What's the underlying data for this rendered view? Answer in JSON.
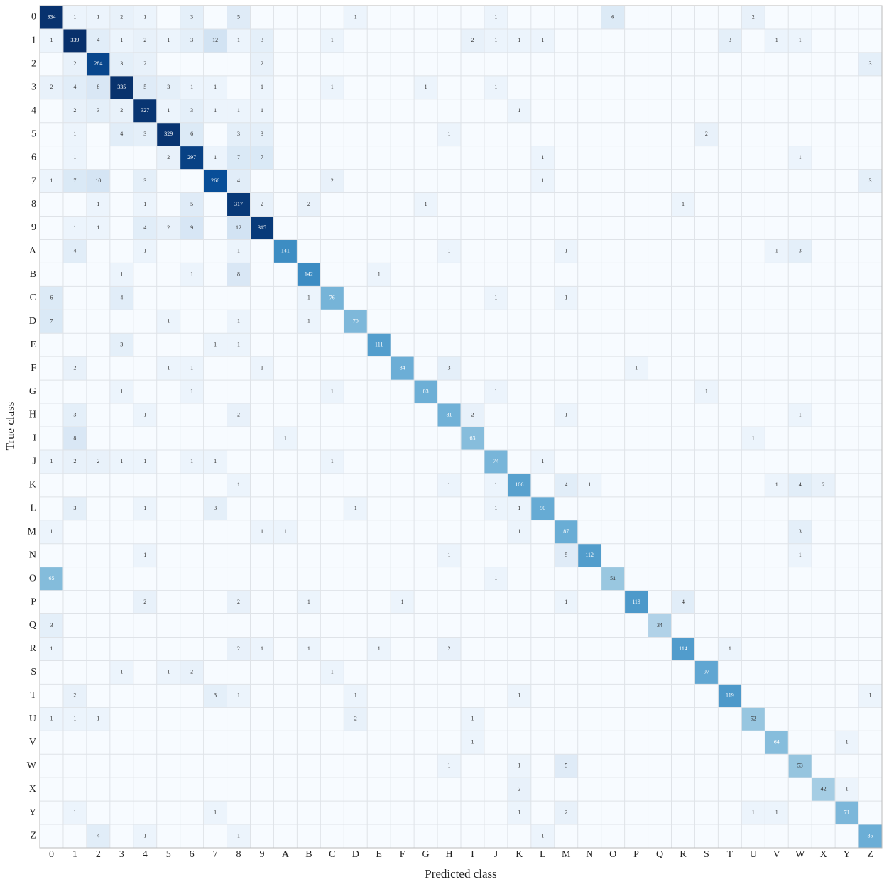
{
  "chart_data": {
    "type": "heatmap",
    "x_label": "Predicted class",
    "y_label": "True class",
    "x_categories": [
      "0",
      "1",
      "2",
      "3",
      "4",
      "5",
      "6",
      "7",
      "8",
      "9",
      "A",
      "B",
      "C",
      "D",
      "E",
      "F",
      "G",
      "H",
      "I",
      "J",
      "K",
      "L",
      "M",
      "N",
      "O",
      "P",
      "Q",
      "R",
      "S",
      "T",
      "U",
      "V",
      "W",
      "X",
      "Y",
      "Z"
    ],
    "y_categories": [
      "0",
      "1",
      "2",
      "3",
      "4",
      "5",
      "6",
      "7",
      "8",
      "9",
      "A",
      "B",
      "C",
      "D",
      "E",
      "F",
      "G",
      "H",
      "I",
      "J",
      "K",
      "L",
      "M",
      "N",
      "O",
      "P",
      "Q",
      "R",
      "S",
      "T",
      "U",
      "V",
      "W",
      "X",
      "Y",
      "Z"
    ],
    "colormap": "Blues",
    "color_scale": "sqrt",
    "grid": true,
    "values": [
      [
        334,
        1,
        1,
        2,
        1,
        null,
        3,
        null,
        5,
        null,
        null,
        null,
        null,
        1,
        null,
        null,
        null,
        null,
        null,
        1,
        null,
        null,
        null,
        null,
        6,
        null,
        null,
        null,
        null,
        null,
        2,
        null,
        null,
        null,
        null,
        null
      ],
      [
        1,
        339,
        4,
        1,
        2,
        1,
        3,
        12,
        1,
        3,
        null,
        null,
        1,
        null,
        null,
        null,
        null,
        null,
        2,
        1,
        1,
        1,
        null,
        null,
        null,
        null,
        null,
        null,
        null,
        3,
        null,
        1,
        1,
        null,
        null,
        null
      ],
      [
        null,
        2,
        284,
        3,
        2,
        null,
        null,
        null,
        null,
        2,
        null,
        null,
        null,
        null,
        null,
        null,
        null,
        null,
        null,
        null,
        null,
        null,
        null,
        null,
        null,
        null,
        null,
        null,
        null,
        null,
        null,
        null,
        null,
        null,
        null,
        3
      ],
      [
        2,
        4,
        8,
        335,
        5,
        3,
        1,
        1,
        null,
        1,
        null,
        null,
        1,
        null,
        null,
        null,
        1,
        null,
        null,
        1,
        null,
        null,
        null,
        null,
        null,
        null,
        null,
        null,
        null,
        null,
        null,
        null,
        null,
        null,
        null,
        null
      ],
      [
        null,
        2,
        3,
        2,
        327,
        1,
        3,
        1,
        1,
        1,
        null,
        null,
        null,
        null,
        null,
        null,
        null,
        null,
        null,
        null,
        1,
        null,
        null,
        null,
        null,
        null,
        null,
        null,
        null,
        null,
        null,
        null,
        null,
        null,
        null,
        null
      ],
      [
        null,
        1,
        null,
        4,
        3,
        329,
        6,
        null,
        3,
        3,
        null,
        null,
        null,
        null,
        null,
        null,
        null,
        1,
        null,
        null,
        null,
        null,
        null,
        null,
        null,
        null,
        null,
        null,
        2,
        null,
        null,
        null,
        null,
        null,
        null,
        null
      ],
      [
        null,
        1,
        null,
        null,
        null,
        2,
        297,
        1,
        7,
        7,
        null,
        null,
        null,
        null,
        null,
        null,
        null,
        null,
        null,
        null,
        null,
        1,
        null,
        null,
        null,
        null,
        null,
        null,
        null,
        null,
        null,
        null,
        1,
        null,
        null,
        null
      ],
      [
        1,
        7,
        10,
        null,
        3,
        null,
        null,
        266,
        4,
        null,
        null,
        null,
        2,
        null,
        null,
        null,
        null,
        null,
        null,
        null,
        null,
        1,
        null,
        null,
        null,
        null,
        null,
        null,
        null,
        null,
        null,
        null,
        null,
        null,
        null,
        3
      ],
      [
        null,
        null,
        1,
        null,
        1,
        null,
        5,
        null,
        317,
        2,
        null,
        2,
        null,
        null,
        null,
        null,
        1,
        null,
        null,
        null,
        null,
        null,
        null,
        null,
        null,
        null,
        null,
        1,
        null,
        null,
        null,
        null,
        null,
        null,
        null,
        null
      ],
      [
        null,
        1,
        1,
        null,
        4,
        2,
        9,
        null,
        12,
        315,
        null,
        null,
        null,
        null,
        null,
        null,
        null,
        null,
        null,
        null,
        null,
        null,
        null,
        null,
        null,
        null,
        null,
        null,
        null,
        null,
        null,
        null,
        null,
        null,
        null,
        null
      ],
      [
        null,
        4,
        null,
        null,
        1,
        null,
        null,
        null,
        1,
        null,
        141,
        null,
        null,
        null,
        null,
        null,
        null,
        1,
        null,
        null,
        null,
        null,
        1,
        null,
        null,
        null,
        null,
        null,
        null,
        null,
        null,
        1,
        3,
        null,
        null,
        null
      ],
      [
        null,
        null,
        null,
        1,
        null,
        null,
        1,
        null,
        8,
        null,
        null,
        142,
        null,
        null,
        1,
        null,
        null,
        null,
        null,
        null,
        null,
        null,
        null,
        null,
        null,
        null,
        null,
        null,
        null,
        null,
        null,
        null,
        null,
        null,
        null,
        null
      ],
      [
        6,
        null,
        null,
        4,
        null,
        null,
        null,
        null,
        null,
        null,
        null,
        1,
        76,
        null,
        null,
        null,
        null,
        null,
        null,
        1,
        null,
        null,
        1,
        null,
        null,
        null,
        null,
        null,
        null,
        null,
        null,
        null,
        null,
        null,
        null,
        null
      ],
      [
        7,
        null,
        null,
        null,
        null,
        1,
        null,
        null,
        1,
        null,
        null,
        1,
        null,
        70,
        null,
        null,
        null,
        null,
        null,
        null,
        null,
        null,
        null,
        null,
        null,
        null,
        null,
        null,
        null,
        null,
        null,
        null,
        null,
        null,
        null,
        null
      ],
      [
        null,
        null,
        null,
        3,
        null,
        null,
        null,
        1,
        1,
        null,
        null,
        null,
        null,
        null,
        111,
        null,
        null,
        null,
        null,
        null,
        null,
        null,
        null,
        null,
        null,
        null,
        null,
        null,
        null,
        null,
        null,
        null,
        null,
        null,
        null,
        null
      ],
      [
        null,
        2,
        null,
        null,
        null,
        1,
        1,
        null,
        null,
        1,
        null,
        null,
        null,
        null,
        null,
        84,
        null,
        3,
        null,
        null,
        null,
        null,
        null,
        null,
        null,
        1,
        null,
        null,
        null,
        null,
        null,
        null,
        null,
        null,
        null,
        null
      ],
      [
        null,
        null,
        null,
        1,
        null,
        null,
        1,
        null,
        null,
        null,
        null,
        null,
        1,
        null,
        null,
        null,
        83,
        null,
        null,
        1,
        null,
        null,
        null,
        null,
        null,
        null,
        null,
        null,
        1,
        null,
        null,
        null,
        null,
        null,
        null,
        null
      ],
      [
        null,
        3,
        null,
        null,
        1,
        null,
        null,
        null,
        2,
        null,
        null,
        null,
        null,
        null,
        null,
        null,
        null,
        81,
        2,
        null,
        null,
        null,
        1,
        null,
        null,
        null,
        null,
        null,
        null,
        null,
        null,
        null,
        1,
        null,
        null,
        null
      ],
      [
        null,
        8,
        null,
        null,
        null,
        null,
        null,
        null,
        null,
        null,
        1,
        null,
        null,
        null,
        null,
        null,
        null,
        null,
        63,
        null,
        null,
        null,
        null,
        null,
        null,
        null,
        null,
        null,
        null,
        null,
        1,
        null,
        null,
        null,
        null,
        null
      ],
      [
        1,
        2,
        2,
        1,
        1,
        null,
        1,
        1,
        null,
        null,
        null,
        null,
        1,
        null,
        null,
        null,
        null,
        null,
        null,
        74,
        null,
        1,
        null,
        null,
        null,
        null,
        null,
        null,
        null,
        null,
        null,
        null,
        null,
        null,
        null,
        null
      ],
      [
        null,
        null,
        null,
        null,
        null,
        null,
        null,
        null,
        1,
        null,
        null,
        null,
        null,
        null,
        null,
        null,
        null,
        1,
        null,
        1,
        106,
        null,
        4,
        1,
        null,
        null,
        null,
        null,
        null,
        null,
        null,
        1,
        4,
        2,
        null,
        null
      ],
      [
        null,
        3,
        null,
        null,
        1,
        null,
        null,
        3,
        null,
        null,
        null,
        null,
        null,
        1,
        null,
        null,
        null,
        null,
        null,
        1,
        1,
        90,
        null,
        null,
        null,
        null,
        null,
        null,
        null,
        null,
        null,
        null,
        null,
        null,
        null,
        null
      ],
      [
        1,
        null,
        null,
        null,
        null,
        null,
        null,
        null,
        null,
        1,
        1,
        null,
        null,
        null,
        null,
        null,
        null,
        null,
        null,
        null,
        1,
        null,
        87,
        null,
        null,
        null,
        null,
        null,
        null,
        null,
        null,
        null,
        3,
        null,
        null,
        null
      ],
      [
        null,
        null,
        null,
        null,
        1,
        null,
        null,
        null,
        null,
        null,
        null,
        null,
        null,
        null,
        null,
        null,
        null,
        1,
        null,
        null,
        null,
        null,
        5,
        112,
        null,
        null,
        null,
        null,
        null,
        null,
        null,
        null,
        1,
        null,
        null,
        null
      ],
      [
        65,
        null,
        null,
        null,
        null,
        null,
        null,
        null,
        null,
        null,
        null,
        null,
        null,
        null,
        null,
        null,
        null,
        null,
        null,
        1,
        null,
        null,
        null,
        null,
        51,
        null,
        null,
        null,
        null,
        null,
        null,
        null,
        null,
        null,
        null,
        null
      ],
      [
        null,
        null,
        null,
        null,
        2,
        null,
        null,
        null,
        2,
        null,
        null,
        1,
        null,
        null,
        null,
        1,
        null,
        null,
        null,
        null,
        null,
        null,
        1,
        null,
        null,
        119,
        null,
        4,
        null,
        null,
        null,
        null,
        null,
        null,
        null,
        null
      ],
      [
        3,
        null,
        null,
        null,
        null,
        null,
        null,
        null,
        null,
        null,
        null,
        null,
        null,
        null,
        null,
        null,
        null,
        null,
        null,
        null,
        null,
        null,
        null,
        null,
        null,
        null,
        34,
        null,
        null,
        null,
        null,
        null,
        null,
        null,
        null,
        null
      ],
      [
        1,
        null,
        null,
        null,
        null,
        null,
        null,
        null,
        2,
        1,
        null,
        1,
        null,
        null,
        1,
        null,
        null,
        2,
        null,
        null,
        null,
        null,
        null,
        null,
        null,
        null,
        null,
        114,
        null,
        1,
        null,
        null,
        null,
        null,
        null,
        null
      ],
      [
        null,
        null,
        null,
        1,
        null,
        1,
        2,
        null,
        null,
        null,
        null,
        null,
        1,
        null,
        null,
        null,
        null,
        null,
        null,
        null,
        null,
        null,
        null,
        null,
        null,
        null,
        null,
        null,
        97,
        null,
        null,
        null,
        null,
        null,
        null,
        null
      ],
      [
        null,
        2,
        null,
        null,
        null,
        null,
        null,
        3,
        1,
        null,
        null,
        null,
        null,
        1,
        null,
        null,
        null,
        null,
        null,
        null,
        1,
        null,
        null,
        null,
        null,
        null,
        null,
        null,
        null,
        119,
        null,
        null,
        null,
        null,
        null,
        1
      ],
      [
        1,
        1,
        1,
        null,
        null,
        null,
        null,
        null,
        null,
        null,
        null,
        null,
        null,
        2,
        null,
        null,
        null,
        null,
        1,
        null,
        null,
        null,
        null,
        null,
        null,
        null,
        null,
        null,
        null,
        null,
        52,
        null,
        null,
        null,
        null,
        null
      ],
      [
        null,
        null,
        null,
        null,
        null,
        null,
        null,
        null,
        null,
        null,
        null,
        null,
        null,
        null,
        null,
        null,
        null,
        null,
        1,
        null,
        null,
        null,
        null,
        null,
        null,
        null,
        null,
        null,
        null,
        null,
        null,
        64,
        null,
        null,
        1,
        null
      ],
      [
        null,
        null,
        null,
        null,
        null,
        null,
        null,
        null,
        null,
        null,
        null,
        null,
        null,
        null,
        null,
        null,
        null,
        1,
        null,
        null,
        1,
        null,
        5,
        null,
        null,
        null,
        null,
        null,
        null,
        null,
        null,
        null,
        53,
        null,
        null,
        null
      ],
      [
        null,
        null,
        null,
        null,
        null,
        null,
        null,
        null,
        null,
        null,
        null,
        null,
        null,
        null,
        null,
        null,
        null,
        null,
        null,
        null,
        2,
        null,
        null,
        null,
        null,
        null,
        null,
        null,
        null,
        null,
        null,
        null,
        null,
        42,
        1,
        null
      ],
      [
        null,
        1,
        null,
        null,
        null,
        null,
        null,
        1,
        null,
        null,
        null,
        null,
        null,
        null,
        null,
        null,
        null,
        null,
        null,
        null,
        1,
        null,
        2,
        null,
        null,
        null,
        null,
        null,
        null,
        null,
        1,
        1,
        null,
        null,
        71,
        null
      ],
      [
        null,
        null,
        4,
        null,
        1,
        null,
        null,
        null,
        1,
        null,
        null,
        null,
        null,
        null,
        null,
        null,
        null,
        null,
        null,
        null,
        null,
        1,
        null,
        null,
        null,
        null,
        null,
        null,
        null,
        null,
        null,
        null,
        null,
        null,
        null,
        85
      ]
    ]
  }
}
